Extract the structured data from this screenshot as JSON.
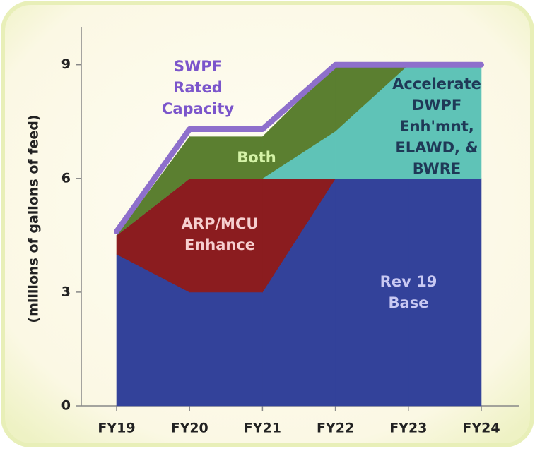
{
  "chart_data": {
    "type": "stacked_area",
    "y_label": "(millions of gallons of feed)",
    "categories": [
      "FY19",
      "FY20",
      "FY21",
      "FY22",
      "FY23",
      "FY24"
    ],
    "ylim": [
      0,
      10
    ],
    "yticks": [
      0,
      3,
      6,
      9
    ],
    "series": [
      {
        "name": "Rev 19\nBase",
        "color": "#33429a",
        "label_color": "#c9c9f2",
        "values": [
          4,
          3,
          3,
          6,
          6,
          6
        ]
      },
      {
        "name": "ARP/MCU\nEnhance",
        "color": "#8b1c1f",
        "label_color": "#f6cfcf",
        "values": [
          0.5,
          3,
          3,
          0,
          0,
          0
        ]
      },
      {
        "name": "Accelerate\nDWPF\nEnh'mnt,\nELAWD, &\nBWRE",
        "color": "#5fc3b7",
        "label_color": "#1f3957",
        "values": [
          0,
          0,
          0,
          1.25,
          3,
          3
        ]
      },
      {
        "name": "Both",
        "color": "#5b7f30",
        "label_color": "#d4f2a6",
        "values": [
          0,
          1.1,
          1.1,
          1.75,
          0,
          0
        ]
      },
      {
        "name": "SWPF\nRated\nCapacity",
        "color": "#8e6fcc",
        "label_color": "#7b55cb",
        "type": "line",
        "values": [
          4.6,
          7.3,
          7.3,
          9,
          9,
          9
        ]
      }
    ]
  }
}
